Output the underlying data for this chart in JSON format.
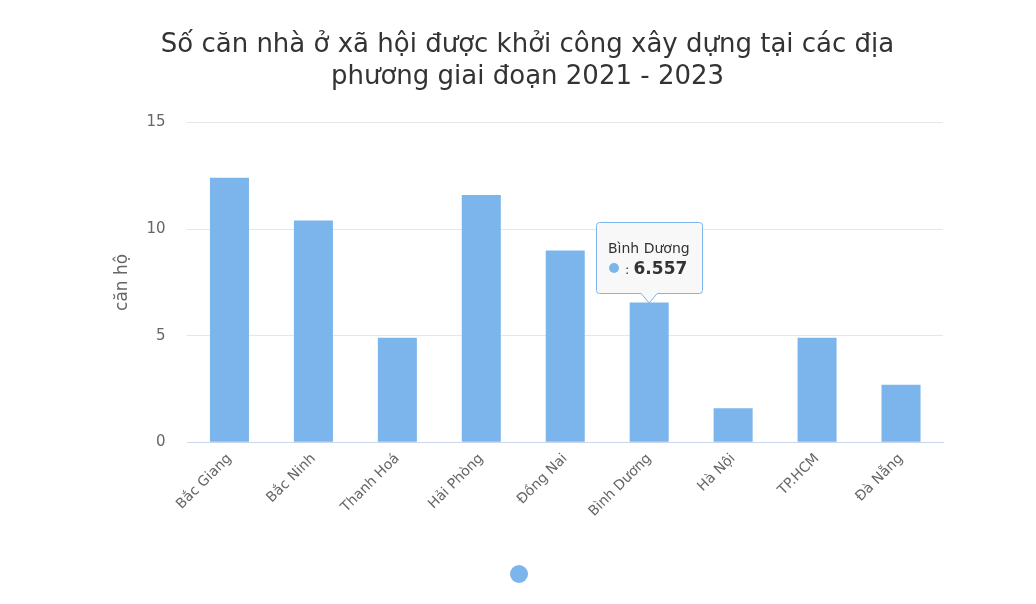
{
  "chart_data": {
    "type": "bar",
    "title": "Số căn nhà ở xã hội được khởi công xây dựng tại các địa phương giai đoạn 2021 - 2023",
    "ylabel": "căn hộ",
    "categories": [
      "Bắc Giang",
      "Bắc Ninh",
      "Thanh Hoá",
      "Hải Phòng",
      "Đồng Nai",
      "Bình Dương",
      "Hà Nội",
      "TP.HCM",
      "Đà Nẵng"
    ],
    "values": [
      12.4,
      10.4,
      4.9,
      11.6,
      9.0,
      6.557,
      1.6,
      4.9,
      2.7
    ],
    "value_labels": [
      null,
      null,
      null,
      null,
      null,
      ": 6.557",
      null,
      null,
      null
    ],
    "color": "#7cb5ec",
    "ylim": [
      0,
      15
    ],
    "yticks": [
      0,
      5,
      10,
      15
    ],
    "grid": "y",
    "annotations": [
      "Bình Dương"
    ]
  }
}
